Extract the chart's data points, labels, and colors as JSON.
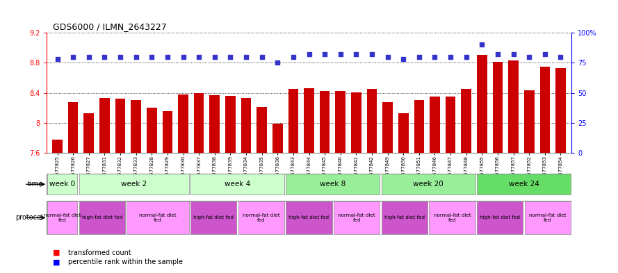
{
  "title": "GDS6000 / ILMN_2643227",
  "samples": [
    "GSM1577825",
    "GSM1577826",
    "GSM1577827",
    "GSM1577831",
    "GSM1577832",
    "GSM1577833",
    "GSM1577828",
    "GSM1577829",
    "GSM1577830",
    "GSM1577837",
    "GSM1577838",
    "GSM1577839",
    "GSM1577834",
    "GSM1577835",
    "GSM1577836",
    "GSM1577843",
    "GSM1577844",
    "GSM1577845",
    "GSM1577840",
    "GSM1577841",
    "GSM1577842",
    "GSM1577849",
    "GSM1577850",
    "GSM1577851",
    "GSM1577846",
    "GSM1577847",
    "GSM1577848",
    "GSM1577855",
    "GSM1577856",
    "GSM1577857",
    "GSM1577852",
    "GSM1577853",
    "GSM1577854"
  ],
  "bar_values": [
    7.78,
    8.28,
    8.13,
    8.33,
    8.32,
    8.3,
    8.2,
    8.16,
    8.38,
    8.4,
    8.37,
    8.36,
    8.33,
    8.21,
    7.99,
    8.45,
    8.46,
    8.42,
    8.42,
    8.41,
    8.45,
    8.28,
    8.13,
    8.3,
    8.35,
    8.35,
    8.45,
    8.91,
    8.81,
    8.83,
    8.43,
    8.75,
    8.73
  ],
  "percentile_values": [
    78,
    80,
    80,
    80,
    80,
    80,
    80,
    80,
    80,
    80,
    80,
    80,
    80,
    80,
    75,
    80,
    82,
    82,
    82,
    82,
    82,
    80,
    78,
    80,
    80,
    80,
    80,
    90,
    82,
    82,
    80,
    82,
    80
  ],
  "ylim_left": [
    7.6,
    9.2
  ],
  "ylim_right": [
    0,
    100
  ],
  "yticks_left": [
    7.6,
    8.0,
    8.4,
    8.8,
    9.2
  ],
  "ytick_labels_left": [
    "7.6",
    "8",
    "8.4",
    "8.8",
    "9.2"
  ],
  "yticks_right": [
    0,
    25,
    50,
    75,
    100
  ],
  "ytick_labels_right": [
    "0",
    "25",
    "50",
    "75",
    "100%"
  ],
  "bar_color": "#cc0000",
  "dot_color": "#3333cc",
  "bg_color": "#ffffff",
  "time_row_groups": [
    {
      "label": "week 0",
      "start": 0,
      "end": 2,
      "color": "#ccffcc"
    },
    {
      "label": "week 2",
      "start": 2,
      "end": 9,
      "color": "#ccffcc"
    },
    {
      "label": "week 4",
      "start": 9,
      "end": 15,
      "color": "#ccffcc"
    },
    {
      "label": "week 8",
      "start": 15,
      "end": 21,
      "color": "#99ee99"
    },
    {
      "label": "week 20",
      "start": 21,
      "end": 27,
      "color": "#99ee99"
    },
    {
      "label": "week 24",
      "start": 27,
      "end": 33,
      "color": "#66dd66"
    }
  ],
  "protocol_row_groups": [
    {
      "label": "normal-fat diet\nfed",
      "start": 0,
      "end": 2,
      "color": "#ff99ff"
    },
    {
      "label": "high-fat diet fed",
      "start": 2,
      "end": 5,
      "color": "#cc55cc"
    },
    {
      "label": "normal-fat diet\nfed",
      "start": 5,
      "end": 9,
      "color": "#ff99ff"
    },
    {
      "label": "high-fat diet fed",
      "start": 9,
      "end": 12,
      "color": "#cc55cc"
    },
    {
      "label": "normal-fat diet\nfed",
      "start": 12,
      "end": 15,
      "color": "#ff99ff"
    },
    {
      "label": "high-fat diet fed",
      "start": 15,
      "end": 18,
      "color": "#cc55cc"
    },
    {
      "label": "normal-fat diet\nfed",
      "start": 18,
      "end": 21,
      "color": "#ff99ff"
    },
    {
      "label": "high-fat diet fed",
      "start": 21,
      "end": 24,
      "color": "#cc55cc"
    },
    {
      "label": "normal-fat diet\nfed",
      "start": 24,
      "end": 27,
      "color": "#ff99ff"
    },
    {
      "label": "high-fat diet fed",
      "start": 27,
      "end": 30,
      "color": "#cc55cc"
    },
    {
      "label": "normal-fat diet\nfed",
      "start": 30,
      "end": 33,
      "color": "#ff99ff"
    }
  ]
}
